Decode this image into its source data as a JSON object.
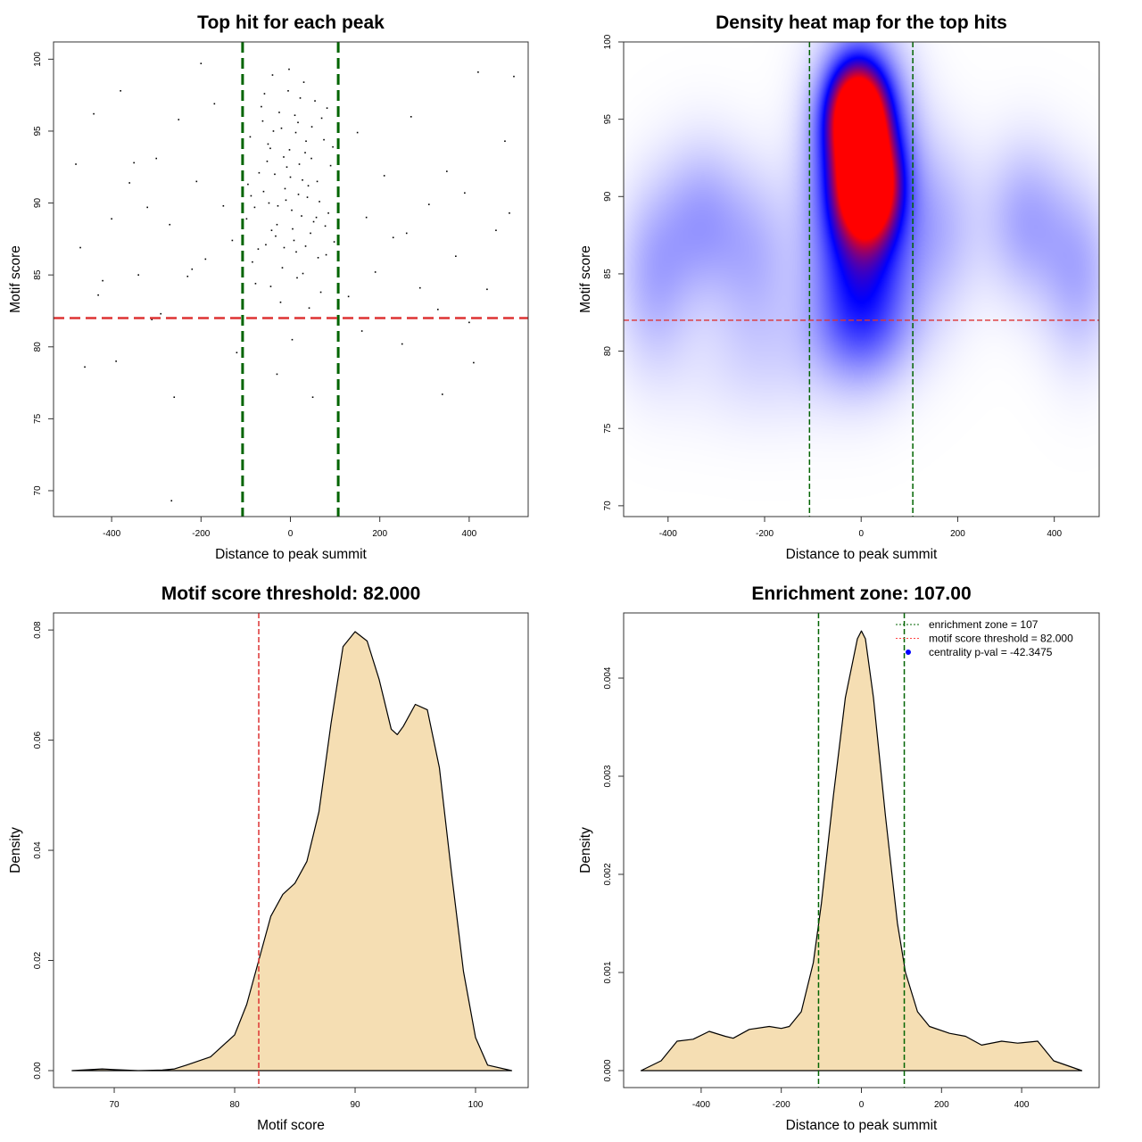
{
  "chart_data": [
    {
      "type": "scatter",
      "title": "Top hit for each peak",
      "xlabel": "Distance to peak summit",
      "ylabel": "Motif score",
      "xlim": [
        -530,
        532
      ],
      "ylim": [
        68.2,
        101.2
      ],
      "xticks": [
        -400,
        -200,
        0,
        200,
        400
      ],
      "yticks": [
        70,
        75,
        80,
        85,
        90,
        95,
        100
      ],
      "vlines": [
        -107,
        107
      ],
      "hline": 82,
      "vline_color": "#006400",
      "hline_color": "#dd3333",
      "points": [
        [
          -20,
          95.2
        ],
        [
          10,
          96.1
        ],
        [
          35,
          94.3
        ],
        [
          -45,
          93.8
        ],
        [
          -70,
          92.1
        ],
        [
          60,
          91.5
        ],
        [
          -10,
          90.2
        ],
        [
          25,
          89.1
        ],
        [
          -30,
          88.5
        ],
        [
          5,
          88.2
        ],
        [
          45,
          87.9
        ],
        [
          -55,
          87.1
        ],
        [
          80,
          86.4
        ],
        [
          -85,
          85.9
        ],
        [
          15,
          84.8
        ],
        [
          -5,
          97.8
        ],
        [
          30,
          98.4
        ],
        [
          -40,
          98.9
        ],
        [
          55,
          97.1
        ],
        [
          -65,
          96.7
        ],
        [
          70,
          95.9
        ],
        [
          -90,
          94.6
        ],
        [
          95,
          93.9
        ],
        [
          -15,
          93.2
        ],
        [
          20,
          92.7
        ],
        [
          -35,
          92.0
        ],
        [
          40,
          91.2
        ],
        [
          -60,
          90.8
        ],
        [
          65,
          90.1
        ],
        [
          -80,
          89.7
        ],
        [
          85,
          89.3
        ],
        [
          0,
          91.8
        ],
        [
          12,
          94.9
        ],
        [
          -25,
          96.3
        ],
        [
          48,
          95.3
        ],
        [
          -50,
          94.1
        ],
        [
          33,
          93.5
        ],
        [
          -8,
          92.5
        ],
        [
          18,
          90.6
        ],
        [
          -28,
          89.8
        ],
        [
          52,
          88.7
        ],
        [
          -42,
          88.1
        ],
        [
          8,
          87.4
        ],
        [
          -72,
          86.8
        ],
        [
          62,
          86.2
        ],
        [
          -18,
          85.5
        ],
        [
          28,
          85.1
        ],
        [
          -95,
          91.3
        ],
        [
          90,
          92.6
        ],
        [
          -3,
          99.3
        ],
        [
          22,
          97.3
        ],
        [
          -58,
          97.6
        ],
        [
          75,
          94.4
        ],
        [
          -12,
          91.0
        ],
        [
          38,
          90.4
        ],
        [
          -48,
          90.0
        ],
        [
          3,
          89.5
        ],
        [
          58,
          89.0
        ],
        [
          -33,
          87.7
        ],
        [
          13,
          86.6
        ],
        [
          -78,
          84.4
        ],
        [
          68,
          83.8
        ],
        [
          -22,
          83.1
        ],
        [
          42,
          82.7
        ],
        [
          -62,
          95.7
        ],
        [
          82,
          96.6
        ],
        [
          -98,
          88.9
        ],
        [
          98,
          87.3
        ],
        [
          -2,
          93.7
        ],
        [
          17,
          95.6
        ],
        [
          -38,
          95.0
        ],
        [
          27,
          91.6
        ],
        [
          -52,
          92.9
        ],
        [
          47,
          93.1
        ],
        [
          -88,
          90.5
        ],
        [
          78,
          88.4
        ],
        [
          -14,
          86.9
        ],
        [
          34,
          87.0
        ],
        [
          -44,
          84.2
        ],
        [
          4,
          80.5
        ],
        [
          -30,
          78.1
        ],
        [
          50,
          76.5
        ],
        [
          -480,
          92.7
        ],
        [
          -470,
          86.9
        ],
        [
          -450,
          82.0
        ],
        [
          -440,
          96.2
        ],
        [
          -420,
          84.6
        ],
        [
          -400,
          88.9
        ],
        [
          -390,
          79.0
        ],
        [
          -380,
          97.8
        ],
        [
          -360,
          91.4
        ],
        [
          -340,
          85.0
        ],
        [
          -320,
          89.7
        ],
        [
          -300,
          93.1
        ],
        [
          -290,
          82.3
        ],
        [
          -270,
          88.5
        ],
        [
          -260,
          76.5
        ],
        [
          -250,
          95.8
        ],
        [
          -230,
          84.9
        ],
        [
          -210,
          91.5
        ],
        [
          -200,
          99.7
        ],
        [
          -190,
          86.1
        ],
        [
          -170,
          96.9
        ],
        [
          -150,
          89.8
        ],
        [
          -130,
          87.4
        ],
        [
          -120,
          79.6
        ],
        [
          -266,
          69.3
        ],
        [
          -460,
          78.6
        ],
        [
          -430,
          83.6
        ],
        [
          -350,
          92.8
        ],
        [
          -310,
          81.9
        ],
        [
          -220,
          85.4
        ],
        [
          150,
          94.9
        ],
        [
          170,
          89.0
        ],
        [
          190,
          85.2
        ],
        [
          210,
          91.9
        ],
        [
          230,
          87.6
        ],
        [
          250,
          80.2
        ],
        [
          270,
          96.0
        ],
        [
          290,
          84.1
        ],
        [
          310,
          89.9
        ],
        [
          330,
          82.6
        ],
        [
          340,
          76.7
        ],
        [
          350,
          92.2
        ],
        [
          370,
          86.3
        ],
        [
          390,
          90.7
        ],
        [
          410,
          78.9
        ],
        [
          420,
          99.1
        ],
        [
          440,
          84.0
        ],
        [
          460,
          88.1
        ],
        [
          480,
          94.3
        ],
        [
          490,
          89.3
        ],
        [
          500,
          98.8
        ],
        [
          130,
          83.5
        ],
        [
          160,
          81.1
        ],
        [
          260,
          87.9
        ],
        [
          400,
          81.7
        ]
      ]
    },
    {
      "type": "heatmap",
      "title": "Density heat map for the top hits",
      "xlabel": "Distance to peak summit",
      "ylabel": "Motif score",
      "xlim": [
        -492,
        493
      ],
      "ylim": [
        69.3,
        100
      ],
      "xticks": [
        -400,
        -200,
        0,
        200,
        400
      ],
      "yticks": [
        70,
        75,
        80,
        85,
        90,
        95,
        100
      ],
      "vlines": [
        -107,
        107
      ],
      "hline": 82,
      "vline_color": "#006400",
      "hline_color": "#dd3333",
      "color_ramp": [
        "#ffffff",
        "#0000ff",
        "#ff0000"
      ],
      "density_components": [
        {
          "x": -8,
          "y": 95.3,
          "w": 1.0,
          "sx": 40,
          "sy": 2.2
        },
        {
          "x": 12,
          "y": 90.8,
          "w": 1.0,
          "sx": 40,
          "sy": 2.2
        },
        {
          "x": 0,
          "y": 92,
          "w": 0.55,
          "sx": 65,
          "sy": 5
        },
        {
          "x": 0,
          "y": 85,
          "w": 0.25,
          "sx": 70,
          "sy": 4
        },
        {
          "x": -430,
          "y": 85,
          "w": 0.14,
          "sx": 55,
          "sy": 4
        },
        {
          "x": -330,
          "y": 88.5,
          "w": 0.15,
          "sx": 60,
          "sy": 3.5
        },
        {
          "x": -220,
          "y": 86,
          "w": 0.12,
          "sx": 60,
          "sy": 4
        },
        {
          "x": 160,
          "y": 88,
          "w": 0.12,
          "sx": 60,
          "sy": 4
        },
        {
          "x": 340,
          "y": 88.5,
          "w": 0.15,
          "sx": 60,
          "sy": 3.5
        },
        {
          "x": 450,
          "y": 85,
          "w": 0.14,
          "sx": 55,
          "sy": 4
        },
        {
          "x": 0,
          "y": 81.5,
          "w": 0.12,
          "sx": 80,
          "sy": 2.5
        },
        {
          "x": -200,
          "y": 79,
          "w": 0.05,
          "sx": 150,
          "sy": 3
        }
      ]
    },
    {
      "type": "area",
      "title": "Motif score threshold: 82.000",
      "xlabel": "Motif score",
      "ylabel": "Density",
      "xlim": [
        64.96,
        104.37
      ],
      "ylim": [
        -0.00308,
        0.0831
      ],
      "xticks": [
        70,
        80,
        90,
        100
      ],
      "yticks": [
        0.0,
        0.02,
        0.04,
        0.06,
        0.08
      ],
      "ytick_labels": [
        "0.00",
        "0.02",
        "0.04",
        "0.06",
        "0.08"
      ],
      "vline": 82,
      "vline_color": "#dd3333",
      "fill_color": "#f5deb3",
      "x": [
        66.5,
        69,
        70,
        72,
        74,
        75,
        76,
        78,
        80,
        81,
        82,
        83,
        84,
        85,
        86,
        87,
        88,
        89,
        90,
        91,
        92,
        93,
        93.5,
        94,
        95,
        96,
        97,
        98,
        99,
        100,
        101,
        103
      ],
      "y": [
        0,
        0.0003,
        0.0002,
        0,
        0.0001,
        0.0003,
        0.001,
        0.0025,
        0.0065,
        0.012,
        0.02,
        0.028,
        0.032,
        0.034,
        0.038,
        0.047,
        0.063,
        0.077,
        0.0797,
        0.078,
        0.071,
        0.062,
        0.061,
        0.0625,
        0.0665,
        0.0655,
        0.055,
        0.036,
        0.018,
        0.006,
        0.001,
        0
      ]
    },
    {
      "type": "area",
      "title": "Enrichment zone: 107.00",
      "xlabel": "Distance to peak summit",
      "ylabel": "Density",
      "xlim": [
        -593.5,
        593.5
      ],
      "ylim": [
        -0.000173,
        0.004664
      ],
      "xticks": [
        -400,
        -200,
        0,
        200,
        400
      ],
      "yticks": [
        0.0,
        0.001,
        0.002,
        0.003,
        0.004
      ],
      "ytick_labels": [
        "0.000",
        "0.001",
        "0.002",
        "0.003",
        "0.004"
      ],
      "vlines": [
        -107,
        107
      ],
      "vline_color": "#006400",
      "fill_color": "#f5deb3",
      "legend": {
        "placement": "top-right",
        "entries": [
          "enrichment zone = 107",
          "motif score threshold = 82.000",
          "centrality p-val = -42.3475"
        ]
      },
      "x": [
        -550,
        -500,
        -460,
        -420,
        -380,
        -340,
        -320,
        -280,
        -230,
        -200,
        -180,
        -150,
        -120,
        -100,
        -70,
        -40,
        -10,
        0,
        10,
        30,
        60,
        90,
        110,
        140,
        170,
        220,
        260,
        300,
        350,
        390,
        440,
        480,
        550
      ],
      "y": [
        0,
        0.0001,
        0.0003,
        0.00032,
        0.0004,
        0.00035,
        0.00033,
        0.00042,
        0.00045,
        0.00043,
        0.00045,
        0.0006,
        0.0011,
        0.0017,
        0.0028,
        0.0038,
        0.0044,
        0.00448,
        0.0044,
        0.0038,
        0.0026,
        0.0015,
        0.001,
        0.0006,
        0.00045,
        0.00038,
        0.00035,
        0.00026,
        0.0003,
        0.00028,
        0.0003,
        0.0001,
        0
      ]
    }
  ]
}
